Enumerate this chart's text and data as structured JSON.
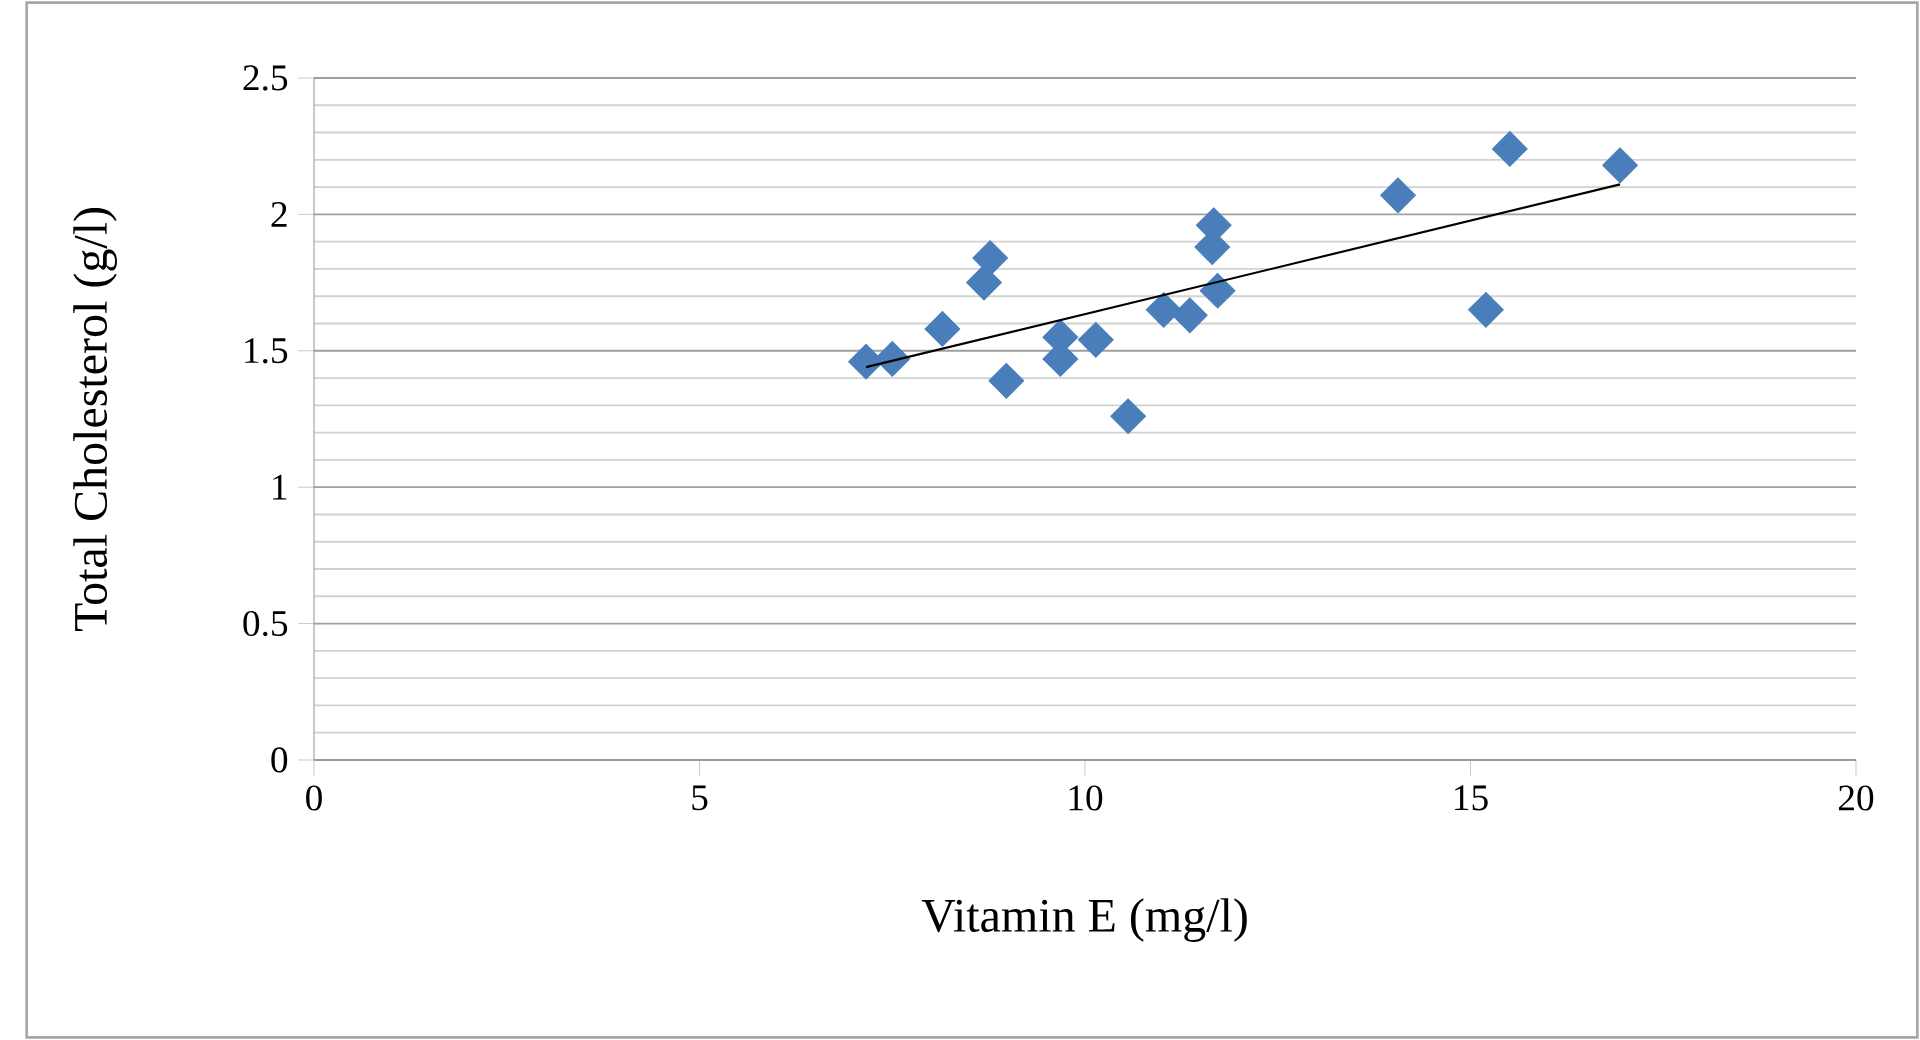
{
  "chart_data": {
    "type": "scatter",
    "xlabel": "Vitamin E (mg/l)",
    "ylabel": "Total Cholesterol (g/l)",
    "xlim": [
      0,
      20
    ],
    "xticks": [
      0,
      5,
      10,
      15,
      20
    ],
    "ylim": [
      0,
      2.5
    ],
    "yticks": [
      0,
      0.5,
      1,
      1.5,
      2,
      2.5
    ],
    "grid": "y",
    "marker": "diamond",
    "series": [
      {
        "color": "#4a7ebb",
        "x": [
          7.16,
          7.5,
          8.15,
          8.77,
          8.69,
          8.98,
          9.68,
          9.68,
          10.14,
          10.56,
          11.02,
          11.36,
          11.67,
          11.65,
          11.72,
          14.06,
          15.2,
          15.51,
          16.94
        ],
        "values": [
          1.46,
          1.47,
          1.58,
          1.84,
          1.75,
          1.39,
          1.55,
          1.47,
          1.54,
          1.26,
          1.65,
          1.63,
          1.96,
          1.88,
          1.72,
          2.07,
          1.65,
          2.24,
          2.18
        ]
      },
      {
        "type": "line",
        "color": "#000000",
        "marker": "none",
        "line_style": "solid",
        "x": [
          7.16,
          16.94
        ],
        "values": [
          1.44,
          2.11
        ]
      }
    ]
  }
}
